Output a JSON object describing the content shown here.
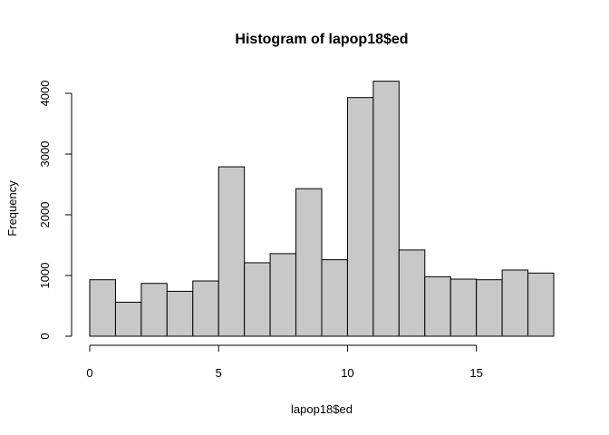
{
  "chart_data": {
    "type": "bar",
    "title": "Histogram of lapop18$ed",
    "xlabel": "lapop18$ed",
    "ylabel": "Frequency",
    "bins": [
      {
        "start": 0,
        "end": 1,
        "value": 930
      },
      {
        "start": 1,
        "end": 2,
        "value": 560
      },
      {
        "start": 2,
        "end": 3,
        "value": 870
      },
      {
        "start": 3,
        "end": 4,
        "value": 740
      },
      {
        "start": 4,
        "end": 5,
        "value": 910
      },
      {
        "start": 5,
        "end": 6,
        "value": 2790
      },
      {
        "start": 6,
        "end": 7,
        "value": 1210
      },
      {
        "start": 7,
        "end": 8,
        "value": 1360
      },
      {
        "start": 8,
        "end": 9,
        "value": 2430
      },
      {
        "start": 9,
        "end": 10,
        "value": 1260
      },
      {
        "start": 10,
        "end": 11,
        "value": 3930
      },
      {
        "start": 11,
        "end": 12,
        "value": 4200
      },
      {
        "start": 12,
        "end": 13,
        "value": 1420
      },
      {
        "start": 13,
        "end": 14,
        "value": 980
      },
      {
        "start": 14,
        "end": 15,
        "value": 940
      },
      {
        "start": 15,
        "end": 16,
        "value": 930
      },
      {
        "start": 16,
        "end": 17,
        "value": 1090
      },
      {
        "start": 17,
        "end": 18,
        "value": 1040
      }
    ],
    "x_ticks": [
      0,
      5,
      10,
      15
    ],
    "y_ticks": [
      0,
      1000,
      2000,
      3000,
      4000
    ],
    "xlim": [
      0,
      18
    ],
    "ylim": [
      0,
      4200
    ],
    "bar_color": "#c8c8c8",
    "grid": false
  }
}
